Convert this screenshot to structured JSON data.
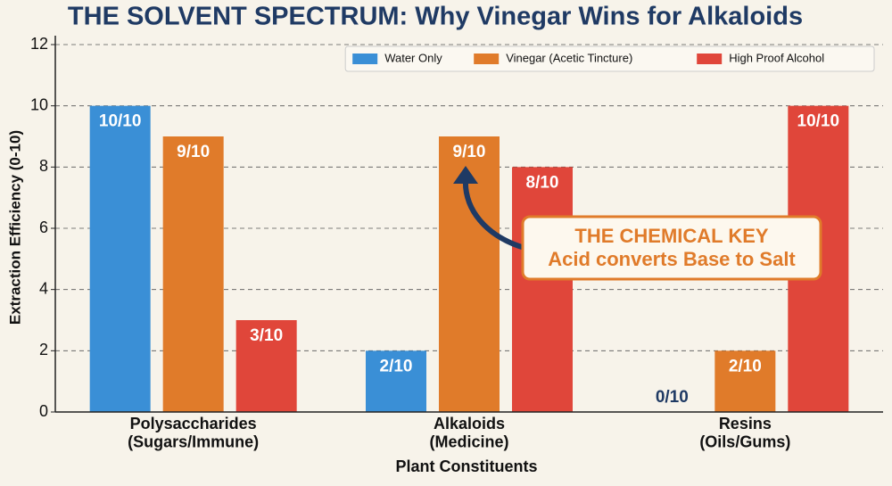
{
  "chart_data": {
    "type": "bar",
    "title": "THE SOLVENT SPECTRUM: Why Vinegar Wins for Alkaloids",
    "x_label": "Plant Constituents",
    "y_label": "Extraction Efficiency (0-10)",
    "categories": [
      "Polysaccharides\n(Sugars/Immune)",
      "Alkaloids\n(Medicine)",
      "Resins\n(Oils/Gums)"
    ],
    "series": [
      {
        "name": "Water Only",
        "color": "#3a8fd6",
        "values": [
          10,
          2,
          0
        ],
        "value_labels": [
          "10/10",
          "2/10",
          "0/10"
        ]
      },
      {
        "name": "Vinegar (Acetic Tincture)",
        "color": "#e07b2a",
        "values": [
          9,
          9,
          2
        ],
        "value_labels": [
          "9/10",
          "9/10",
          "2/10"
        ]
      },
      {
        "name": "High Proof Alcohol",
        "color": "#e0463a",
        "values": [
          3,
          8,
          10
        ],
        "value_labels": [
          "3/10",
          "8/10",
          "10/10"
        ]
      }
    ],
    "ylim": [
      0,
      12
    ],
    "yticks": [
      0,
      2,
      4,
      6,
      8,
      10,
      12
    ],
    "grid": true,
    "legend": "upper right",
    "annotation": {
      "title": "THE CHEMICAL KEY",
      "text": "Acid converts Base to Salt"
    }
  }
}
